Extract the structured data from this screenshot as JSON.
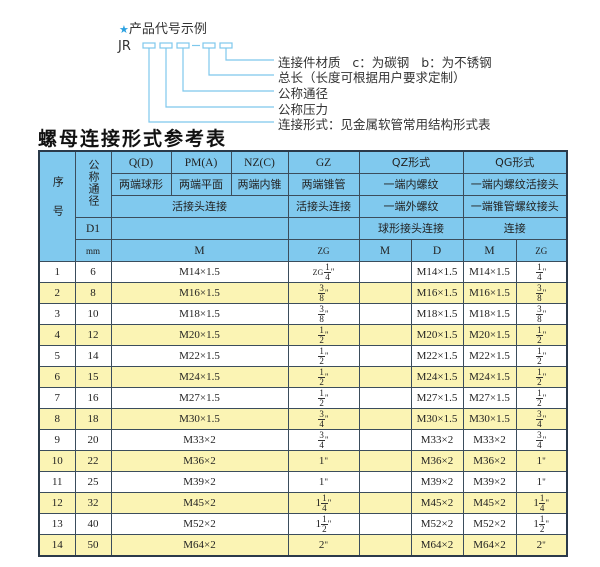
{
  "diagram": {
    "title": "产品代号示例",
    "code_prefix": "JR",
    "labels": [
      "连接件材质   c：为碳钢   b：为不锈钢",
      "总长（长度可根据用户要求定制）",
      "公称通径",
      "公称压力",
      "连接形式：见金属软管常用结构形式表"
    ],
    "line_color": "#7ec8ec"
  },
  "table_title": "螺母连接形式参考表",
  "header": {
    "seq": "序号",
    "dn": "公称通径",
    "d1": "D1",
    "mm": "mm",
    "row1": [
      "Q(D)",
      "PM(A)",
      "NZ(C)",
      "GZ",
      "QZ形式",
      "QG形式"
    ],
    "row2": [
      "两端球形",
      "两端平面",
      "两端内锥",
      "两端锥管",
      "一端内螺纹",
      "一端内螺纹活接头"
    ],
    "row3": [
      "活接头连接",
      "活接头连接",
      "一端外螺纹",
      "一端锥管螺纹接头"
    ],
    "row4": [
      "球形接头连接",
      "连接"
    ],
    "row5": [
      "M",
      "ZG",
      "M",
      "D",
      "M",
      "ZG"
    ]
  },
  "rows": [
    {
      "n": "1",
      "d": "6",
      "m": "M14×1.5",
      "zg": {
        "pre": "ZG",
        "whole": "",
        "num": "1",
        "den": "4"
      },
      "qzm": "",
      "qzd": "M14×1.5",
      "qgm": "M14×1.5",
      "qgzg": {
        "pre": "",
        "whole": "",
        "num": "1",
        "den": "4"
      }
    },
    {
      "n": "2",
      "d": "8",
      "m": "M16×1.5",
      "zg": {
        "pre": "",
        "whole": "",
        "num": "3",
        "den": "8"
      },
      "qzm": "",
      "qzd": "M16×1.5",
      "qgm": "M16×1.5",
      "qgzg": {
        "pre": "",
        "whole": "",
        "num": "3",
        "den": "8"
      }
    },
    {
      "n": "3",
      "d": "10",
      "m": "M18×1.5",
      "zg": {
        "pre": "",
        "whole": "",
        "num": "3",
        "den": "8"
      },
      "qzm": "",
      "qzd": "M18×1.5",
      "qgm": "M18×1.5",
      "qgzg": {
        "pre": "",
        "whole": "",
        "num": "3",
        "den": "8"
      }
    },
    {
      "n": "4",
      "d": "12",
      "m": "M20×1.5",
      "zg": {
        "pre": "",
        "whole": "",
        "num": "1",
        "den": "2"
      },
      "qzm": "",
      "qzd": "M20×1.5",
      "qgm": "M20×1.5",
      "qgzg": {
        "pre": "",
        "whole": "",
        "num": "1",
        "den": "2"
      }
    },
    {
      "n": "5",
      "d": "14",
      "m": "M22×1.5",
      "zg": {
        "pre": "",
        "whole": "",
        "num": "1",
        "den": "2"
      },
      "qzm": "",
      "qzd": "M22×1.5",
      "qgm": "M22×1.5",
      "qgzg": {
        "pre": "",
        "whole": "",
        "num": "1",
        "den": "2"
      }
    },
    {
      "n": "6",
      "d": "15",
      "m": "M24×1.5",
      "zg": {
        "pre": "",
        "whole": "",
        "num": "1",
        "den": "2"
      },
      "qzm": "",
      "qzd": "M24×1.5",
      "qgm": "M24×1.5",
      "qgzg": {
        "pre": "",
        "whole": "",
        "num": "1",
        "den": "2"
      }
    },
    {
      "n": "7",
      "d": "16",
      "m": "M27×1.5",
      "zg": {
        "pre": "",
        "whole": "",
        "num": "1",
        "den": "2"
      },
      "qzm": "",
      "qzd": "M27×1.5",
      "qgm": "M27×1.5",
      "qgzg": {
        "pre": "",
        "whole": "",
        "num": "1",
        "den": "2"
      }
    },
    {
      "n": "8",
      "d": "18",
      "m": "M30×1.5",
      "zg": {
        "pre": "",
        "whole": "",
        "num": "3",
        "den": "4"
      },
      "qzm": "",
      "qzd": "M30×1.5",
      "qgm": "M30×1.5",
      "qgzg": {
        "pre": "",
        "whole": "",
        "num": "3",
        "den": "4"
      }
    },
    {
      "n": "9",
      "d": "20",
      "m": "M33×2",
      "zg": {
        "pre": "",
        "whole": "",
        "num": "3",
        "den": "4"
      },
      "qzm": "",
      "qzd": "M33×2",
      "qgm": "M33×2",
      "qgzg": {
        "pre": "",
        "whole": "",
        "num": "3",
        "den": "4"
      }
    },
    {
      "n": "10",
      "d": "22",
      "m": "M36×2",
      "zg": {
        "pre": "",
        "whole": "1",
        "num": "",
        "den": ""
      },
      "qzm": "",
      "qzd": "M36×2",
      "qgm": "M36×2",
      "qgzg": {
        "pre": "",
        "whole": "1",
        "num": "",
        "den": ""
      }
    },
    {
      "n": "11",
      "d": "25",
      "m": "M39×2",
      "zg": {
        "pre": "",
        "whole": "1",
        "num": "",
        "den": ""
      },
      "qzm": "",
      "qzd": "M39×2",
      "qgm": "M39×2",
      "qgzg": {
        "pre": "",
        "whole": "1",
        "num": "",
        "den": ""
      }
    },
    {
      "n": "12",
      "d": "32",
      "m": "M45×2",
      "zg": {
        "pre": "",
        "whole": "1",
        "num": "1",
        "den": "4"
      },
      "qzm": "",
      "qzd": "M45×2",
      "qgm": "M45×2",
      "qgzg": {
        "pre": "",
        "whole": "1",
        "num": "1",
        "den": "4"
      }
    },
    {
      "n": "13",
      "d": "40",
      "m": "M52×2",
      "zg": {
        "pre": "",
        "whole": "1",
        "num": "1",
        "den": "2"
      },
      "qzm": "",
      "qzd": "M52×2",
      "qgm": "M52×2",
      "qgzg": {
        "pre": "",
        "whole": "1",
        "num": "1",
        "den": "2"
      }
    },
    {
      "n": "14",
      "d": "50",
      "m": "M64×2",
      "zg": {
        "pre": "",
        "whole": "2",
        "num": "",
        "den": ""
      },
      "qzm": "",
      "qzd": "M64×2",
      "qgm": "M64×2",
      "qgzg": {
        "pre": "",
        "whole": "2",
        "num": "",
        "den": ""
      }
    }
  ],
  "inch_mark": "\"",
  "colors": {
    "header_bg": "#80c9ee",
    "row_alt_bg": "#fbf4b4",
    "border": "#2b3a4a",
    "star": "#2aa0e0"
  }
}
